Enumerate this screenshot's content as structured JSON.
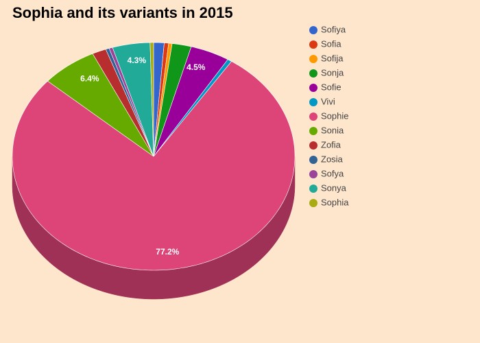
{
  "chart_data": {
    "type": "pie3d",
    "title": "Sophia and its variants in 2015",
    "categories": [
      "Sofiya",
      "Sofia",
      "Sofija",
      "Sonja",
      "Sofie",
      "Vivi",
      "Sophie",
      "Sonia",
      "Zofia",
      "Zosia",
      "Sofya",
      "Sonya",
      "Sophia"
    ],
    "values": [
      1.2,
      0.5,
      0.4,
      2.2,
      4.5,
      0.5,
      77.2,
      6.4,
      1.6,
      0.4,
      0.4,
      4.3,
      0.4
    ],
    "value_labels": [
      null,
      null,
      null,
      null,
      "4.5%",
      null,
      "77.2%",
      "6.4%",
      null,
      null,
      null,
      "4.3%",
      null
    ],
    "colors": [
      "#3366cc",
      "#dc3912",
      "#ff9900",
      "#109618",
      "#990099",
      "#0099c6",
      "#dd4477",
      "#66aa00",
      "#b82e2e",
      "#316395",
      "#994499",
      "#22aa99",
      "#aaaa11"
    ],
    "legend": "right"
  }
}
